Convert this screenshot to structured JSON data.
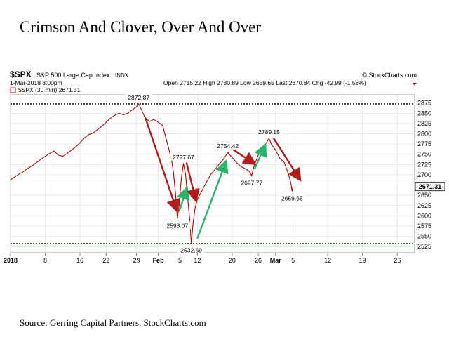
{
  "page": {
    "title": "Crimson And Clover, Over And Over",
    "source": "Source: Gerring Capital Partners, StockCharts.com"
  },
  "header": {
    "symbol": "$SPX",
    "index_name": "S&P 500 Large Cap Index",
    "index_tag": "INDX",
    "brand": "© StockCharts.com",
    "date": "1-Mar-2018 3:00pm",
    "legend": "$SPX (30 min) 2671.31",
    "ohlc": "Open 2715.22  High 2730.89  Low 2659.65  Last 2670.84  Chg -42.99 (-1.58%)"
  },
  "chart_data": {
    "type": "line",
    "series": [
      {
        "name": "$SPX (30 min)",
        "points": [
          [
            0,
            2688
          ],
          [
            1,
            2695
          ],
          [
            2,
            2702
          ],
          [
            3,
            2708
          ],
          [
            4,
            2716
          ],
          [
            5,
            2722
          ],
          [
            6,
            2730
          ],
          [
            7,
            2738
          ],
          [
            8,
            2745
          ],
          [
            9,
            2752
          ],
          [
            10,
            2758
          ],
          [
            11,
            2748
          ],
          [
            12,
            2745
          ],
          [
            13,
            2752
          ],
          [
            14,
            2760
          ],
          [
            15,
            2768
          ],
          [
            16,
            2778
          ],
          [
            17,
            2790
          ],
          [
            18,
            2798
          ],
          [
            19,
            2802
          ],
          [
            20,
            2810
          ],
          [
            21,
            2818
          ],
          [
            22,
            2828
          ],
          [
            23,
            2838
          ],
          [
            24,
            2845
          ],
          [
            25,
            2850
          ],
          [
            26,
            2846
          ],
          [
            27,
            2850
          ],
          [
            28,
            2858
          ],
          [
            29,
            2866
          ],
          [
            29.5,
            2872.87
          ],
          [
            30,
            2862
          ],
          [
            31,
            2838
          ],
          [
            32,
            2830
          ],
          [
            33,
            2835
          ],
          [
            34,
            2828
          ],
          [
            35,
            2820
          ],
          [
            36,
            2780
          ],
          [
            37,
            2740
          ],
          [
            37.5,
            2705
          ],
          [
            38,
            2650
          ],
          [
            38.4,
            2593.07
          ],
          [
            38.8,
            2625
          ],
          [
            39.3,
            2690
          ],
          [
            39.8,
            2727.67
          ],
          [
            40.3,
            2700
          ],
          [
            40.8,
            2640
          ],
          [
            41.2,
            2595
          ],
          [
            41.6,
            2532.69
          ],
          [
            42,
            2580
          ],
          [
            42.5,
            2620
          ],
          [
            43,
            2640
          ],
          [
            44,
            2660
          ],
          [
            45,
            2680
          ],
          [
            46,
            2700
          ],
          [
            47,
            2712
          ],
          [
            48,
            2726
          ],
          [
            49,
            2738
          ],
          [
            50,
            2754.42
          ],
          [
            51,
            2742
          ],
          [
            52,
            2730
          ],
          [
            53,
            2720
          ],
          [
            54,
            2715
          ],
          [
            55,
            2708
          ],
          [
            55.5,
            2697.77
          ],
          [
            56,
            2720
          ],
          [
            57,
            2748
          ],
          [
            58,
            2765
          ],
          [
            59,
            2780
          ],
          [
            59.5,
            2789.15
          ],
          [
            60,
            2775
          ],
          [
            61,
            2760
          ],
          [
            62,
            2740
          ],
          [
            63,
            2730
          ],
          [
            63.5,
            2715
          ],
          [
            64,
            2700
          ],
          [
            64.5,
            2680
          ],
          [
            64.8,
            2659.65
          ],
          [
            65,
            2671.31
          ]
        ]
      }
    ],
    "ylim": [
      2510,
      2895
    ],
    "y_ticks": [
      2525,
      2550,
      2575,
      2600,
      2625,
      2650,
      2675,
      2700,
      2725,
      2750,
      2775,
      2800,
      2825,
      2850,
      2875
    ],
    "x_ticks": [
      {
        "x": 0,
        "label": "2018"
      },
      {
        "x": 8,
        "label": "8"
      },
      {
        "x": 16,
        "label": "16"
      },
      {
        "x": 22,
        "label": "22"
      },
      {
        "x": 29,
        "label": "29"
      },
      {
        "x": 34,
        "label": "Feb"
      },
      {
        "x": 39,
        "label": "5"
      },
      {
        "x": 43,
        "label": "12"
      },
      {
        "x": 51,
        "label": "20"
      },
      {
        "x": 57,
        "label": "26"
      },
      {
        "x": 61,
        "label": "Mar"
      },
      {
        "x": 65,
        "label": "5"
      },
      {
        "x": 73,
        "label": "12"
      },
      {
        "x": 81,
        "label": "19"
      },
      {
        "x": 89,
        "label": "26"
      }
    ],
    "xlim": [
      0,
      93
    ],
    "last_value": "2671.31",
    "reference_lines": [
      {
        "value": 2872.87,
        "color": "#000000",
        "style": "dotted"
      },
      {
        "value": 2532.69,
        "color": "#1a7f1a",
        "style": "dotted"
      }
    ],
    "annotations": [
      {
        "label": "2872.87",
        "x": 29.5,
        "y": 2872.87,
        "pos": "above"
      },
      {
        "label": "2727.67",
        "x": 39.8,
        "y": 2727.67,
        "pos": "above"
      },
      {
        "label": "2593.07",
        "x": 38.4,
        "y": 2593.07,
        "pos": "below"
      },
      {
        "label": "2532.69",
        "x": 41.6,
        "y": 2532.69,
        "pos": "below"
      },
      {
        "label": "2754.42",
        "x": 50,
        "y": 2754.42,
        "pos": "above"
      },
      {
        "label": "2697.77",
        "x": 55.5,
        "y": 2697.77,
        "pos": "below"
      },
      {
        "label": "2789.15",
        "x": 59.5,
        "y": 2789.15,
        "pos": "above"
      },
      {
        "label": "2659.65",
        "x": 64.8,
        "y": 2659.65,
        "pos": "below"
      }
    ],
    "arrows": [
      {
        "from": [
          31,
          2840
        ],
        "to": [
          38.2,
          2615
        ],
        "color": "#b31b1b"
      },
      {
        "from": [
          38.8,
          2610
        ],
        "to": [
          40.5,
          2665
        ],
        "color": "#2db36b"
      },
      {
        "from": [
          40.5,
          2730
        ],
        "to": [
          42.6,
          2640
        ],
        "color": "#b31b1b"
      },
      {
        "from": [
          43,
          2545
        ],
        "to": [
          49.5,
          2730
        ],
        "color": "#2db36b"
      },
      {
        "from": [
          51,
          2763
        ],
        "to": [
          56,
          2728
        ],
        "color": "#b31b1b"
      },
      {
        "from": [
          56.2,
          2715
        ],
        "to": [
          58.5,
          2770
        ],
        "color": "#2db36b"
      },
      {
        "from": [
          60.5,
          2790
        ],
        "to": [
          66.5,
          2690
        ],
        "color": "#b31b1b"
      }
    ],
    "colors": {
      "price": "#b30000",
      "arrow_red": "#b31b1b",
      "arrow_green": "#2db36b",
      "grid": "#dcdcdc"
    }
  }
}
